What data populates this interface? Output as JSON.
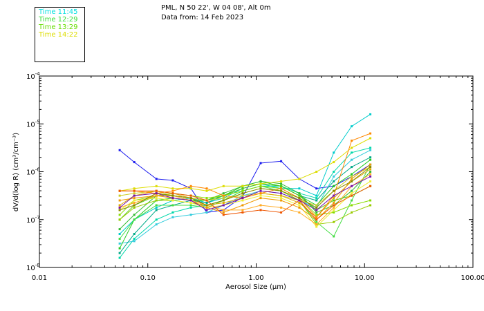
{
  "header": {
    "location": "PML, N 50 22', W 04 08', Alt 0m",
    "date": "Data from: 14 Feb 2023"
  },
  "legend": [
    {
      "label": "Time 11:45",
      "color": "#00e0e0"
    },
    {
      "label": "Time 12:29",
      "color": "#33dd33"
    },
    {
      "label": "Time 13:29",
      "color": "#66dd00"
    },
    {
      "label": "Time 14:22",
      "color": "#dddd00"
    }
  ],
  "chart_data": {
    "type": "line",
    "xscale": "log",
    "yscale": "log",
    "xlim": [
      0.01,
      100
    ],
    "ylim_exponents": [
      -8,
      -4
    ],
    "xlabel": "Aerosol Size (μm)",
    "ylabel": "dV/d(log R) (cm³/cm⁻³)",
    "x_tick_labels": [
      "0.01",
      "0.10",
      "1.00",
      "10.00",
      "100.00"
    ],
    "y_tick_labels": [
      {
        "base": "10",
        "exp": "-8"
      },
      {
        "base": "10",
        "exp": "-7"
      },
      {
        "base": "10",
        "exp": "-6"
      },
      {
        "base": "10",
        "exp": "-5"
      },
      {
        "base": "10",
        "exp": "-4"
      }
    ],
    "x": [
      0.055,
      0.075,
      0.12,
      0.17,
      0.25,
      0.35,
      0.5,
      0.75,
      1.1,
      1.7,
      2.5,
      3.6,
      5.2,
      7.6,
      11.3
    ],
    "series": [
      {
        "name": "blue",
        "color": "#1a1aee",
        "log10_values": [
          -5.55,
          -5.8,
          -6.15,
          -6.18,
          -6.35,
          -6.85,
          -6.8,
          -6.52,
          -5.82,
          -5.78,
          -6.15,
          -6.35,
          -6.3,
          -6.1,
          -5.85
        ]
      },
      {
        "name": "cyan-a",
        "color": "#00cccc",
        "log10_values": [
          -7.3,
          -7.0,
          -6.75,
          -6.6,
          -6.55,
          -6.65,
          -6.55,
          -6.35,
          -6.25,
          -6.35,
          -6.35,
          -6.5,
          -5.6,
          -5.05,
          -4.8
        ]
      },
      {
        "name": "cyan-b",
        "color": "#00d8aa",
        "log10_values": [
          -7.8,
          -7.4,
          -7.0,
          -6.85,
          -6.75,
          -6.7,
          -6.6,
          -6.4,
          -6.3,
          -6.3,
          -6.45,
          -6.55,
          -6.0,
          -5.6,
          -5.5
        ]
      },
      {
        "name": "cyan-c",
        "color": "#33ccdd",
        "log10_values": [
          -7.5,
          -7.45,
          -7.1,
          -6.95,
          -6.9,
          -6.85,
          -6.7,
          -6.5,
          -6.4,
          -6.45,
          -6.6,
          -6.75,
          -6.1,
          -5.75,
          -5.55
        ]
      },
      {
        "name": "teal",
        "color": "#00aa88",
        "log10_values": [
          -7.7,
          -7.3,
          -6.8,
          -6.7,
          -6.6,
          -6.65,
          -6.5,
          -6.35,
          -6.25,
          -6.3,
          -6.5,
          -6.6,
          -6.2,
          -5.9,
          -5.7
        ]
      },
      {
        "name": "green-a",
        "color": "#22cc22",
        "log10_values": [
          -7.6,
          -7.0,
          -6.6,
          -6.55,
          -6.6,
          -6.6,
          -6.5,
          -6.3,
          -6.2,
          -6.3,
          -6.5,
          -6.7,
          -6.3,
          -6.05,
          -5.75
        ]
      },
      {
        "name": "green-b",
        "color": "#44dd44",
        "log10_values": [
          -7.4,
          -7.0,
          -6.7,
          -6.7,
          -6.7,
          -6.75,
          -6.6,
          -6.4,
          -6.3,
          -6.4,
          -6.6,
          -7.05,
          -7.35,
          -6.6,
          -5.85
        ]
      },
      {
        "name": "green-c",
        "color": "#33bb33",
        "log10_values": [
          -7.2,
          -6.9,
          -6.5,
          -6.5,
          -6.55,
          -6.6,
          -6.45,
          -6.3,
          -6.2,
          -6.25,
          -6.45,
          -6.85,
          -6.7,
          -6.4,
          -6.0
        ]
      },
      {
        "name": "green-d",
        "color": "#55cc11",
        "log10_values": [
          -7.0,
          -6.7,
          -6.5,
          -6.5,
          -6.55,
          -6.6,
          -6.5,
          -6.35,
          -6.25,
          -6.3,
          -6.5,
          -6.8,
          -6.6,
          -6.5,
          -6.3
        ]
      },
      {
        "name": "lime-a",
        "color": "#88dd00",
        "log10_values": [
          -6.9,
          -6.6,
          -6.5,
          -6.45,
          -6.5,
          -6.55,
          -6.5,
          -6.4,
          -6.3,
          -6.35,
          -6.55,
          -6.9,
          -6.85,
          -6.7,
          -6.6
        ]
      },
      {
        "name": "lime-b",
        "color": "#99cc00",
        "log10_values": [
          -7.0,
          -6.75,
          -6.6,
          -6.6,
          -6.65,
          -6.7,
          -6.6,
          -6.45,
          -6.35,
          -6.4,
          -6.6,
          -7.1,
          -7.05,
          -6.85,
          -6.7
        ]
      },
      {
        "name": "yellow-a",
        "color": "#dddd00",
        "log10_values": [
          -6.4,
          -6.35,
          -6.3,
          -6.35,
          -6.35,
          -6.4,
          -6.3,
          -6.3,
          -6.25,
          -6.2,
          -6.15,
          -6.0,
          -5.8,
          -5.5,
          -5.3
        ]
      },
      {
        "name": "yellow-b",
        "color": "#cccc22",
        "log10_values": [
          -6.5,
          -6.45,
          -6.4,
          -6.5,
          -6.55,
          -6.6,
          -6.55,
          -6.5,
          -6.45,
          -6.5,
          -6.6,
          -6.7,
          -6.4,
          -6.1,
          -5.9
        ]
      },
      {
        "name": "yellow-c",
        "color": "#eeee33",
        "log10_values": [
          -6.8,
          -6.6,
          -6.55,
          -6.6,
          -6.65,
          -6.75,
          -6.7,
          -6.6,
          -6.5,
          -6.55,
          -6.7,
          -7.15,
          -6.8,
          -6.45,
          -6.2
        ]
      },
      {
        "name": "gold",
        "color": "#ddaa00",
        "log10_values": [
          -6.7,
          -6.5,
          -6.4,
          -6.45,
          -6.55,
          -6.7,
          -6.65,
          -6.55,
          -6.45,
          -6.5,
          -6.65,
          -6.95,
          -6.55,
          -6.2,
          -5.95
        ]
      },
      {
        "name": "orange-a",
        "color": "#ff8800",
        "log10_values": [
          -6.4,
          -6.4,
          -6.45,
          -6.4,
          -6.3,
          -6.35,
          -6.5,
          -6.55,
          -6.45,
          -6.35,
          -6.55,
          -6.95,
          -6.5,
          -5.35,
          -5.2
        ]
      },
      {
        "name": "orange-b",
        "color": "#ee9900",
        "log10_values": [
          -6.6,
          -6.55,
          -6.5,
          -6.55,
          -6.6,
          -6.75,
          -6.85,
          -6.7,
          -6.55,
          -6.6,
          -6.75,
          -7.0,
          -6.65,
          -6.15,
          -5.85
        ]
      },
      {
        "name": "orange-c",
        "color": "#ffaa22",
        "log10_values": [
          -6.75,
          -6.65,
          -6.5,
          -6.5,
          -6.6,
          -6.7,
          -6.8,
          -6.8,
          -6.7,
          -6.75,
          -6.85,
          -7.1,
          -6.75,
          -6.3,
          -6.05
        ]
      },
      {
        "name": "red-orange",
        "color": "#ee5500",
        "log10_values": [
          -6.4,
          -6.4,
          -6.4,
          -6.45,
          -6.5,
          -6.6,
          -6.9,
          -6.85,
          -6.8,
          -6.85,
          -6.6,
          -7.0,
          -6.7,
          -6.5,
          -6.3
        ]
      },
      {
        "name": "olive",
        "color": "#888800",
        "log10_values": [
          -6.8,
          -6.7,
          -6.45,
          -6.5,
          -6.55,
          -6.7,
          -6.6,
          -6.45,
          -6.35,
          -6.4,
          -6.55,
          -6.75,
          -6.4,
          -6.2,
          -5.9
        ]
      },
      {
        "name": "purple",
        "color": "#7711aa",
        "log10_values": [
          -6.75,
          -6.5,
          -6.45,
          -6.55,
          -6.6,
          -6.8,
          -6.7,
          -6.55,
          -6.4,
          -6.45,
          -6.6,
          -6.8,
          -6.5,
          -6.3,
          -6.1
        ]
      }
    ]
  }
}
